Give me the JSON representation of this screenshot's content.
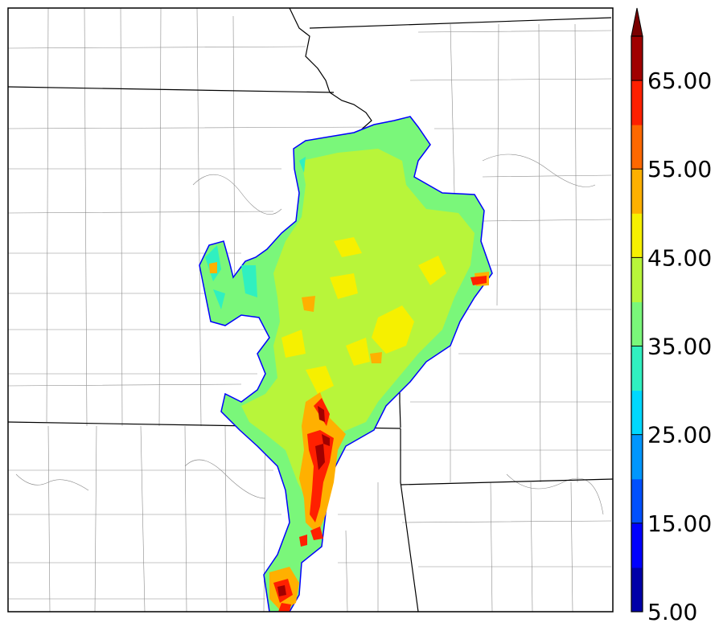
{
  "colorbar": {
    "labels": [
      "5.00",
      "15.00",
      "25.00",
      "35.00",
      "45.00",
      "55.00",
      "65.00"
    ],
    "levels": [
      5,
      10,
      15,
      20,
      25,
      30,
      35,
      40,
      45,
      50,
      55,
      60,
      65,
      70
    ],
    "colors": [
      "#0000a8",
      "#0000ff",
      "#0050ff",
      "#0096ff",
      "#00d8ff",
      "#30f0c0",
      "#7af77a",
      "#b8f53a",
      "#f6f000",
      "#ffb000",
      "#ff6800",
      "#ff2000",
      "#a00000"
    ],
    "extend_color": "#7a0000"
  },
  "map": {
    "background": "#ffffff",
    "state_border_color": "#000000",
    "county_border_color": "#8a8a8a",
    "field_edge_color": "#0000ff"
  }
}
